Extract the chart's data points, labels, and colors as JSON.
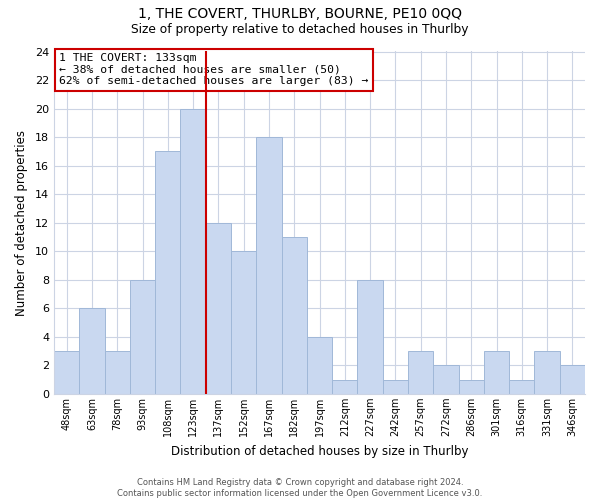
{
  "title": "1, THE COVERT, THURLBY, BOURNE, PE10 0QQ",
  "subtitle": "Size of property relative to detached houses in Thurlby",
  "xlabel": "Distribution of detached houses by size in Thurlby",
  "ylabel": "Number of detached properties",
  "bin_labels": [
    "48sqm",
    "63sqm",
    "78sqm",
    "93sqm",
    "108sqm",
    "123sqm",
    "137sqm",
    "152sqm",
    "167sqm",
    "182sqm",
    "197sqm",
    "212sqm",
    "227sqm",
    "242sqm",
    "257sqm",
    "272sqm",
    "286sqm",
    "301sqm",
    "316sqm",
    "331sqm",
    "346sqm"
  ],
  "bar_heights": [
    3,
    6,
    3,
    8,
    17,
    20,
    12,
    10,
    18,
    11,
    4,
    1,
    8,
    1,
    3,
    2,
    1,
    3,
    1,
    3,
    2
  ],
  "bar_color": "#c9d8f0",
  "bar_edge_color": "#a0b8d8",
  "highlight_line_color": "#cc0000",
  "highlight_bar_index": 5,
  "annotation_line1": "1 THE COVERT: 133sqm",
  "annotation_line2": "← 38% of detached houses are smaller (50)",
  "annotation_line3": "62% of semi-detached houses are larger (83) →",
  "annotation_box_color": "#ffffff",
  "annotation_box_edge": "#cc0000",
  "ylim": [
    0,
    24
  ],
  "yticks": [
    0,
    2,
    4,
    6,
    8,
    10,
    12,
    14,
    16,
    18,
    20,
    22,
    24
  ],
  "footer1": "Contains HM Land Registry data © Crown copyright and database right 2024.",
  "footer2": "Contains public sector information licensed under the Open Government Licence v3.0.",
  "background_color": "#ffffff",
  "grid_color": "#ccd4e4"
}
